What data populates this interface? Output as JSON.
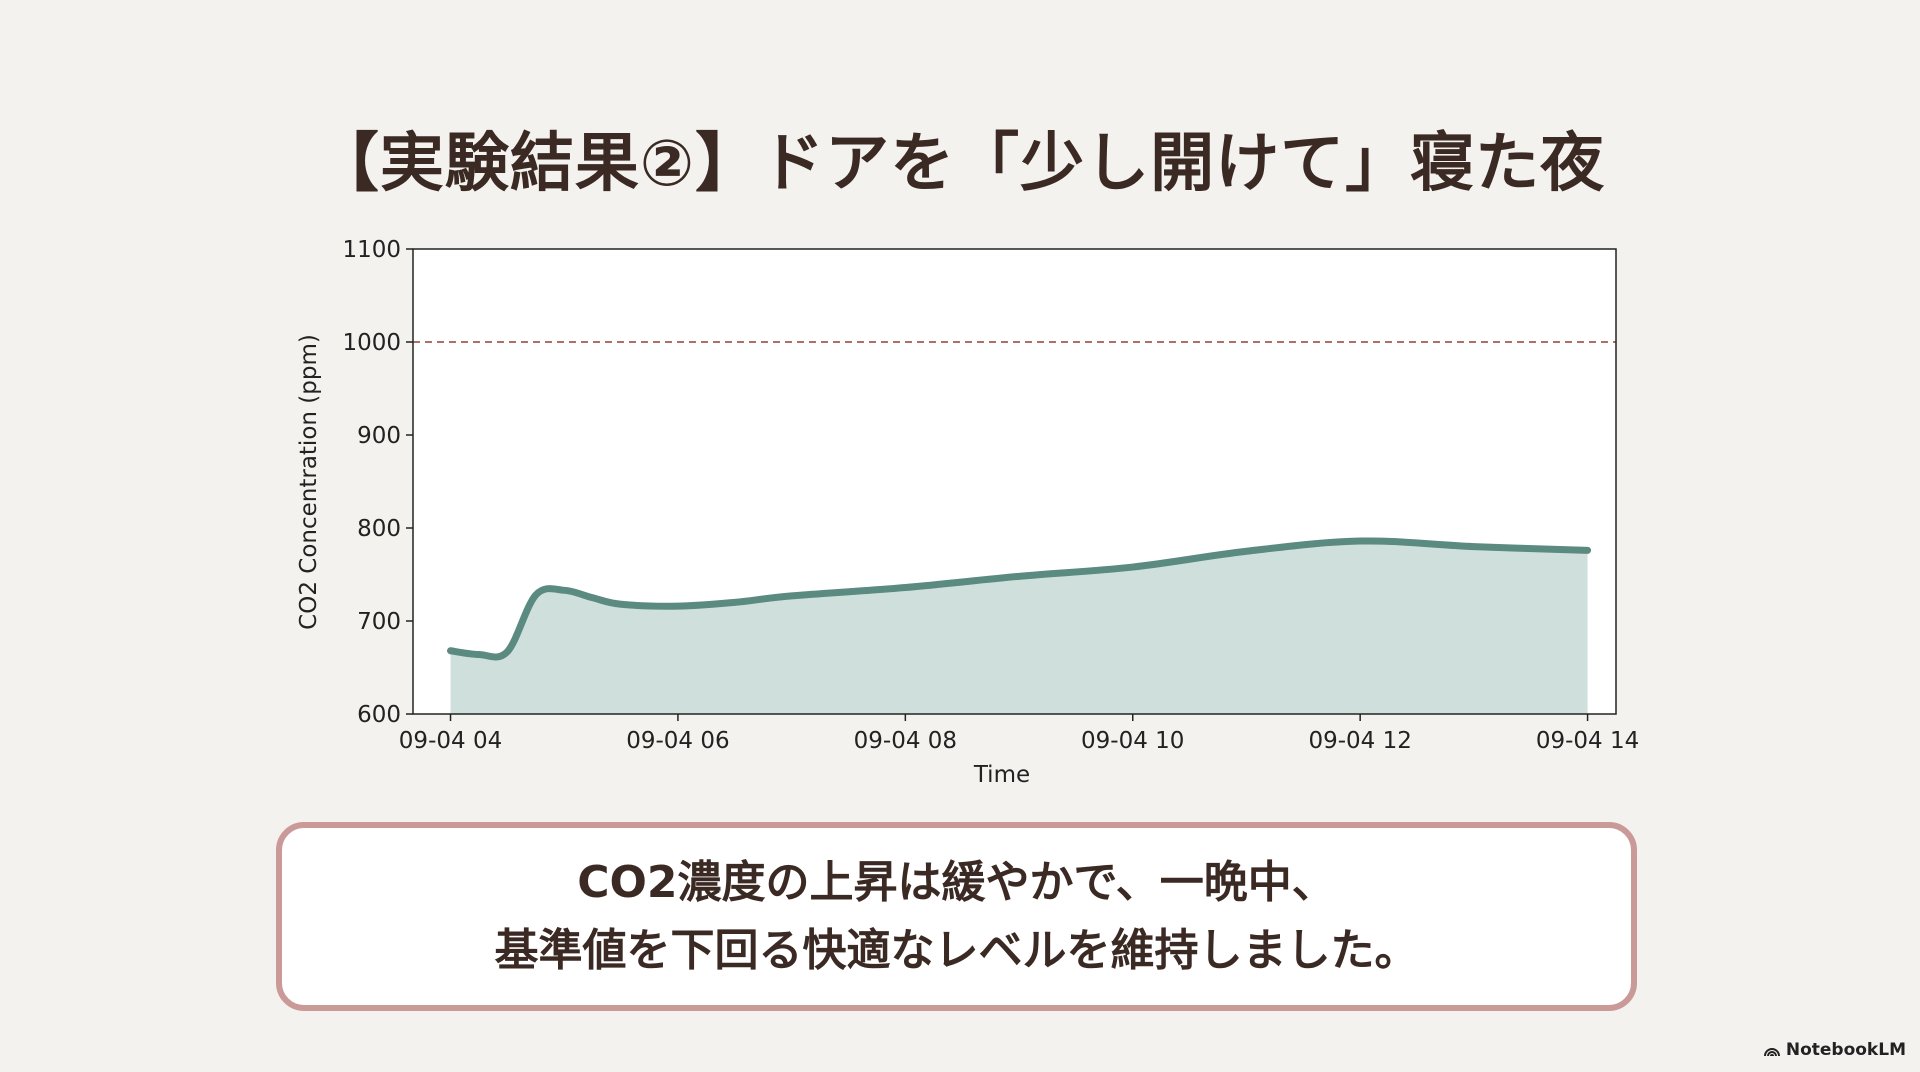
{
  "title": "【実験結果②】ドアを「少し開けて」寝た夜",
  "message": {
    "line1": "CO2濃度の上昇は緩やかで、一晩中、",
    "line2": "基準値を下回る快適なレベルを維持しました。"
  },
  "brand": "NotebookLM",
  "chart_data": {
    "type": "area",
    "xlabel": "Time",
    "ylabel": "CO2 Concentration (ppm)",
    "ylim": [
      600,
      1100
    ],
    "yticks": [
      600,
      700,
      800,
      900,
      1000,
      1100
    ],
    "xlim_hours": [
      3.67,
      14.25
    ],
    "xticks": [
      {
        "hour": 4,
        "label": "09-04 04"
      },
      {
        "hour": 6,
        "label": "09-04 06"
      },
      {
        "hour": 8,
        "label": "09-04 08"
      },
      {
        "hour": 10,
        "label": "09-04 10"
      },
      {
        "hour": 12,
        "label": "09-04 12"
      },
      {
        "hour": 14,
        "label": "09-04 14"
      }
    ],
    "grid": false,
    "threshold": {
      "value": 1000,
      "style": "dashed",
      "color": "#b0706a"
    },
    "series": [
      {
        "color": "#5a8a80",
        "fill": "#cfe0dc",
        "x": [
          "09-04 04:00",
          "09-04 04:15",
          "09-04 04:30",
          "09-04 04:45",
          "09-04 05:00",
          "09-04 05:15",
          "09-04 05:30",
          "09-04 06:00",
          "09-04 06:30",
          "09-04 07:00",
          "09-04 08:00",
          "09-04 09:00",
          "09-04 10:00",
          "09-04 11:00",
          "09-04 12:00",
          "09-04 13:00",
          "09-04 14:00"
        ],
        "y": [
          668,
          664,
          667,
          728,
          733,
          725,
          718,
          716,
          720,
          727,
          736,
          748,
          758,
          775,
          786,
          780,
          776
        ]
      }
    ]
  }
}
